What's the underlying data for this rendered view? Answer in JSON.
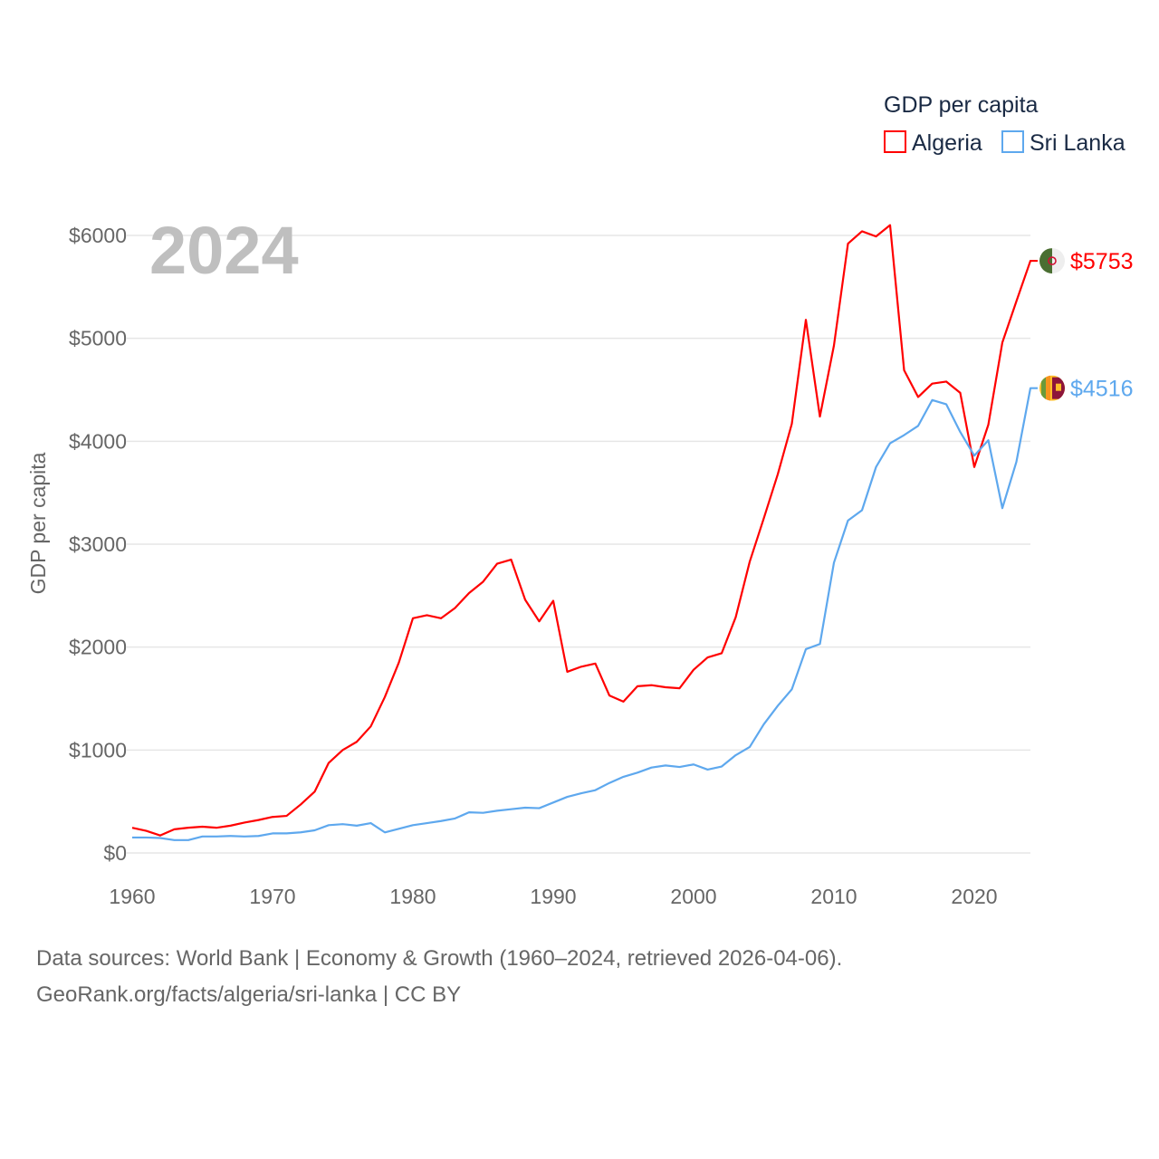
{
  "chart_data": {
    "type": "line",
    "title": "GDP per capita",
    "year_label": "2024",
    "xlabel": "",
    "ylabel": "GDP per capita",
    "xlim": [
      1960,
      2024
    ],
    "ylim": [
      0,
      6000
    ],
    "grid": true,
    "legend_position": "top-right",
    "x_ticks": [
      "1960",
      "1970",
      "1980",
      "1990",
      "2000",
      "2010",
      "2020"
    ],
    "y_ticks": [
      "$0",
      "$1000",
      "$2000",
      "$3000",
      "$4000",
      "$5000",
      "$6000"
    ],
    "x_start": 1960,
    "series": [
      {
        "name": "Algeria",
        "color": "#ff0000",
        "end_label": "$5753",
        "flag": "algeria-flag",
        "values": [
          245,
          215,
          170,
          230,
          245,
          255,
          245,
          265,
          295,
          320,
          350,
          360,
          470,
          595,
          875,
          1000,
          1080,
          1230,
          1515,
          1850,
          2280,
          2310,
          2280,
          2380,
          2525,
          2635,
          2810,
          2850,
          2460,
          2250,
          2450,
          1760,
          1810,
          1840,
          1530,
          1470,
          1620,
          1630,
          1610,
          1600,
          1780,
          1900,
          1940,
          2290,
          2830,
          3250,
          3680,
          4170,
          5180,
          4240,
          4930,
          5920,
          6040,
          5990,
          6100,
          4690,
          4430,
          4560,
          4580,
          4470,
          3750,
          4160,
          4960,
          5360,
          5753
        ]
      },
      {
        "name": "Sri Lanka",
        "color": "#5ea8ee",
        "end_label": "$4516",
        "flag": "sri-lanka-flag",
        "values": [
          150,
          150,
          145,
          125,
          125,
          160,
          160,
          165,
          160,
          165,
          190,
          190,
          200,
          220,
          270,
          280,
          265,
          290,
          200,
          235,
          270,
          290,
          310,
          335,
          395,
          390,
          410,
          425,
          440,
          435,
          490,
          545,
          580,
          610,
          680,
          740,
          780,
          830,
          850,
          835,
          860,
          810,
          840,
          950,
          1030,
          1250,
          1430,
          1590,
          1980,
          2030,
          2820,
          3230,
          3330,
          3750,
          3980,
          4060,
          4150,
          4400,
          4360,
          4090,
          3860,
          4010,
          3350,
          3800,
          4516
        ]
      }
    ]
  },
  "footer": {
    "line1": "Data sources: World Bank | Economy & Growth (1960–2024, retrieved 2026-04-06).",
    "line2": "GeoRank.org/facts/algeria/sri-lanka | CC BY"
  }
}
